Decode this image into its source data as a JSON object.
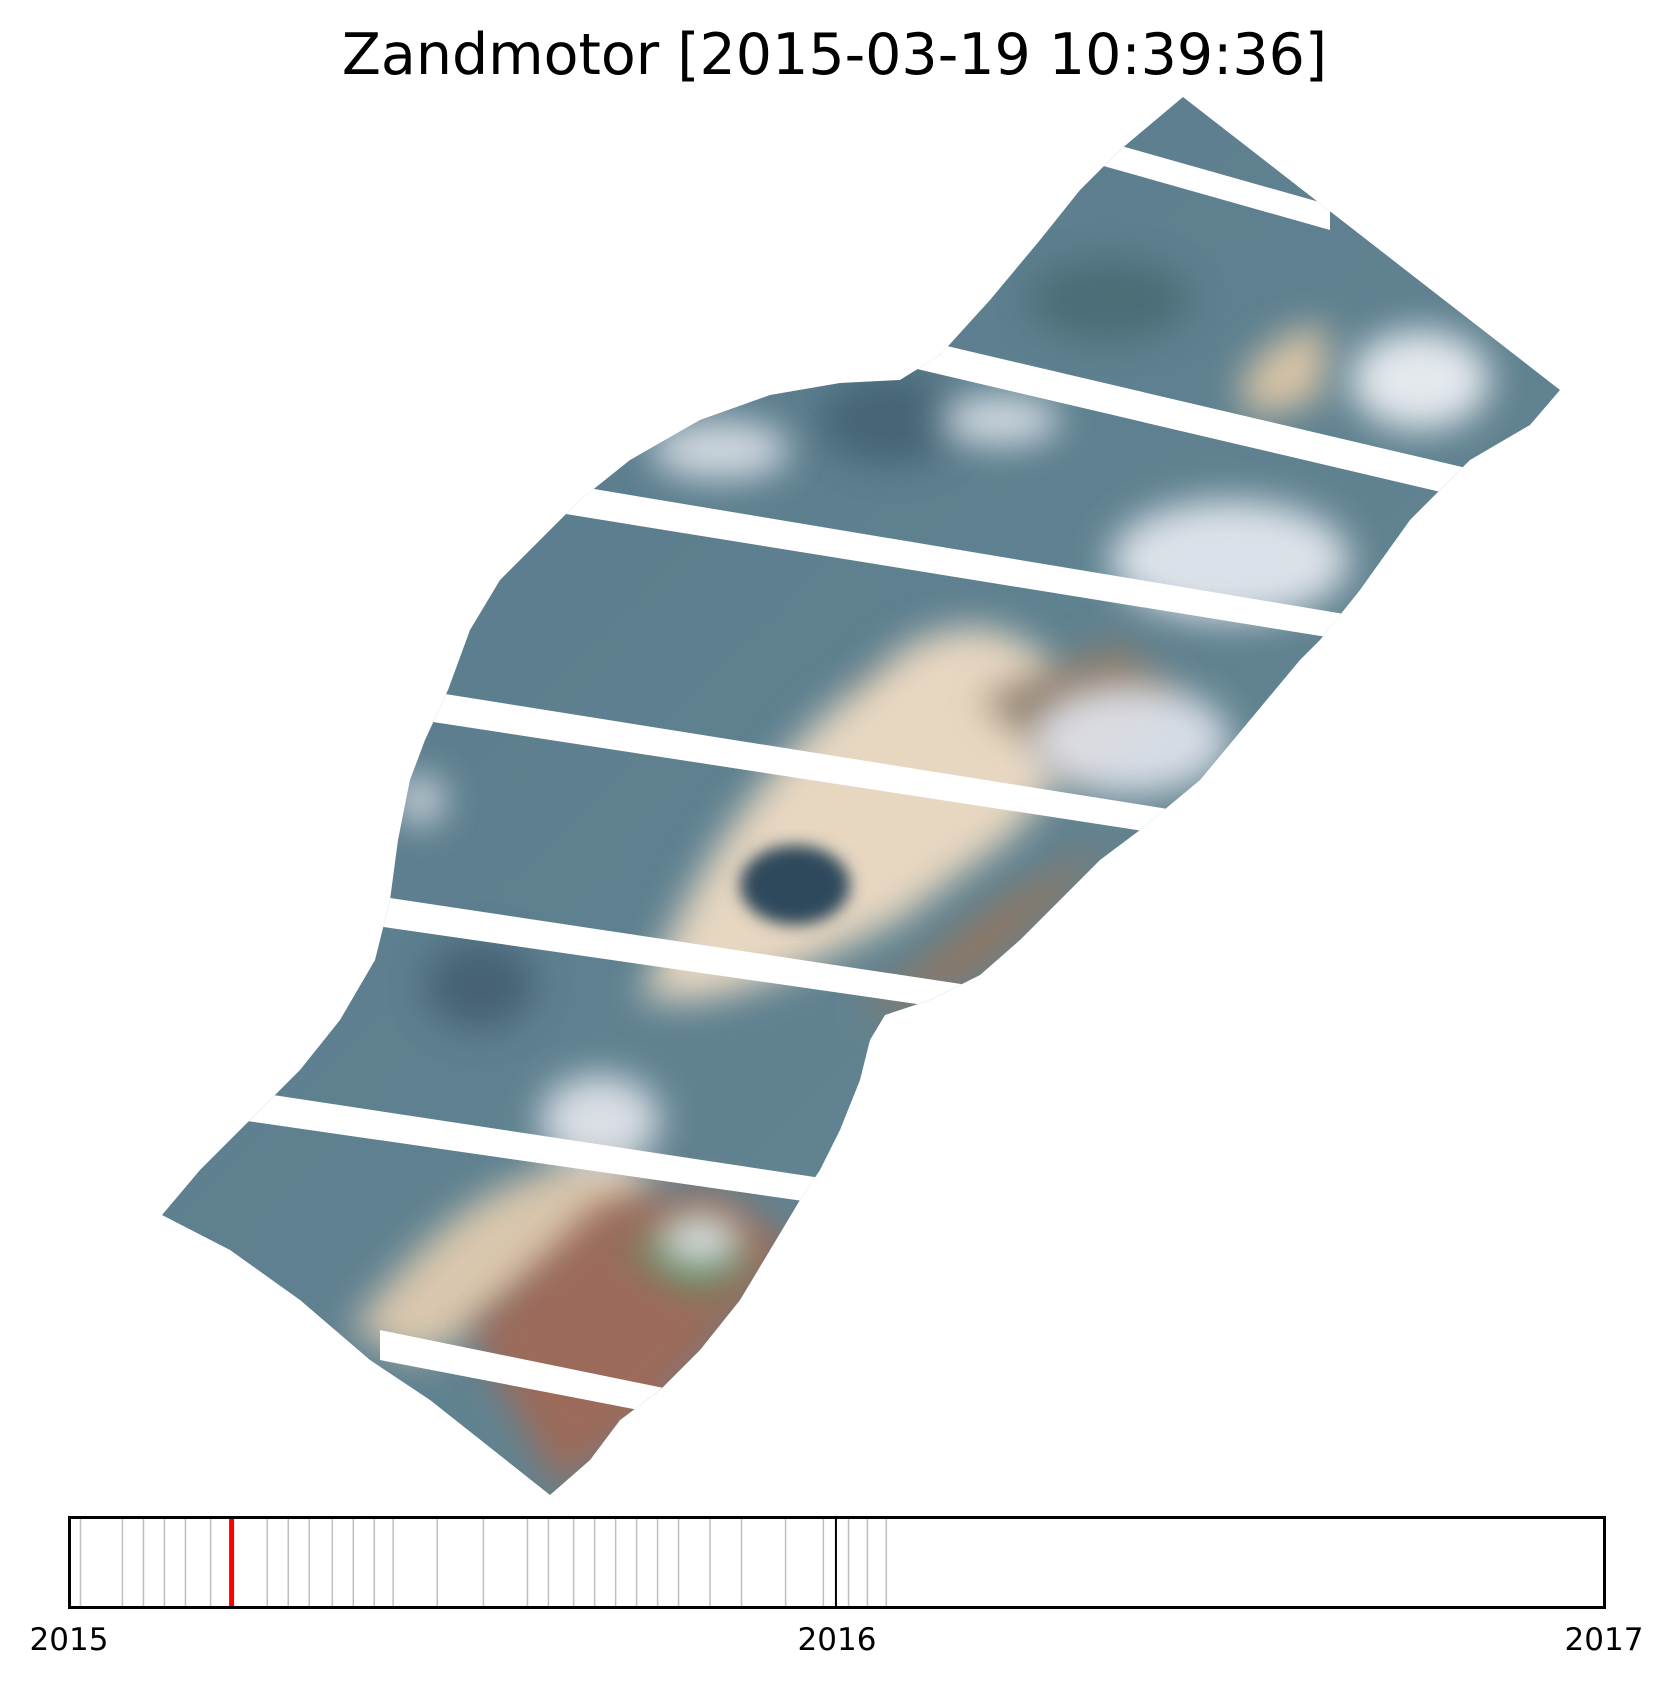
{
  "title": "Zandmotor [2015-03-19 10:39:36]",
  "image": {
    "subject": "satellite-mosaic-strips",
    "palette": {
      "sea": "#5b7c8a",
      "sea_dark": "#3f5e70",
      "sand": "#e6d6bf",
      "cloud": "#e9ecf2",
      "land_brown": "#8f7763",
      "land_red": "#a0675a",
      "land_green": "#5e8661"
    }
  },
  "timeline": {
    "tick_labels": [
      "2015",
      "2016",
      "2017"
    ],
    "x_range": [
      "2015-01-01",
      "2017-01-01"
    ],
    "acquisition_dates": [
      "2015-01-06",
      "2015-01-26",
      "2015-02-05",
      "2015-02-15",
      "2015-02-25",
      "2015-03-09",
      "2015-04-05",
      "2015-04-15",
      "2015-04-25",
      "2015-05-06",
      "2015-05-16",
      "2015-05-26",
      "2015-06-04",
      "2015-06-25",
      "2015-07-17",
      "2015-08-07",
      "2015-08-17",
      "2015-08-29",
      "2015-09-08",
      "2015-09-18",
      "2015-09-28",
      "2015-10-08",
      "2015-10-18",
      "2015-11-02",
      "2015-11-17",
      "2015-12-08",
      "2015-12-26",
      "2016-01-07",
      "2016-01-16",
      "2016-01-25"
    ],
    "current_date": "2015-03-19",
    "colors": {
      "frame": "#000000",
      "date_line": "#bfbfbf",
      "current": "#ff0000",
      "year_marker": "#000000"
    }
  }
}
